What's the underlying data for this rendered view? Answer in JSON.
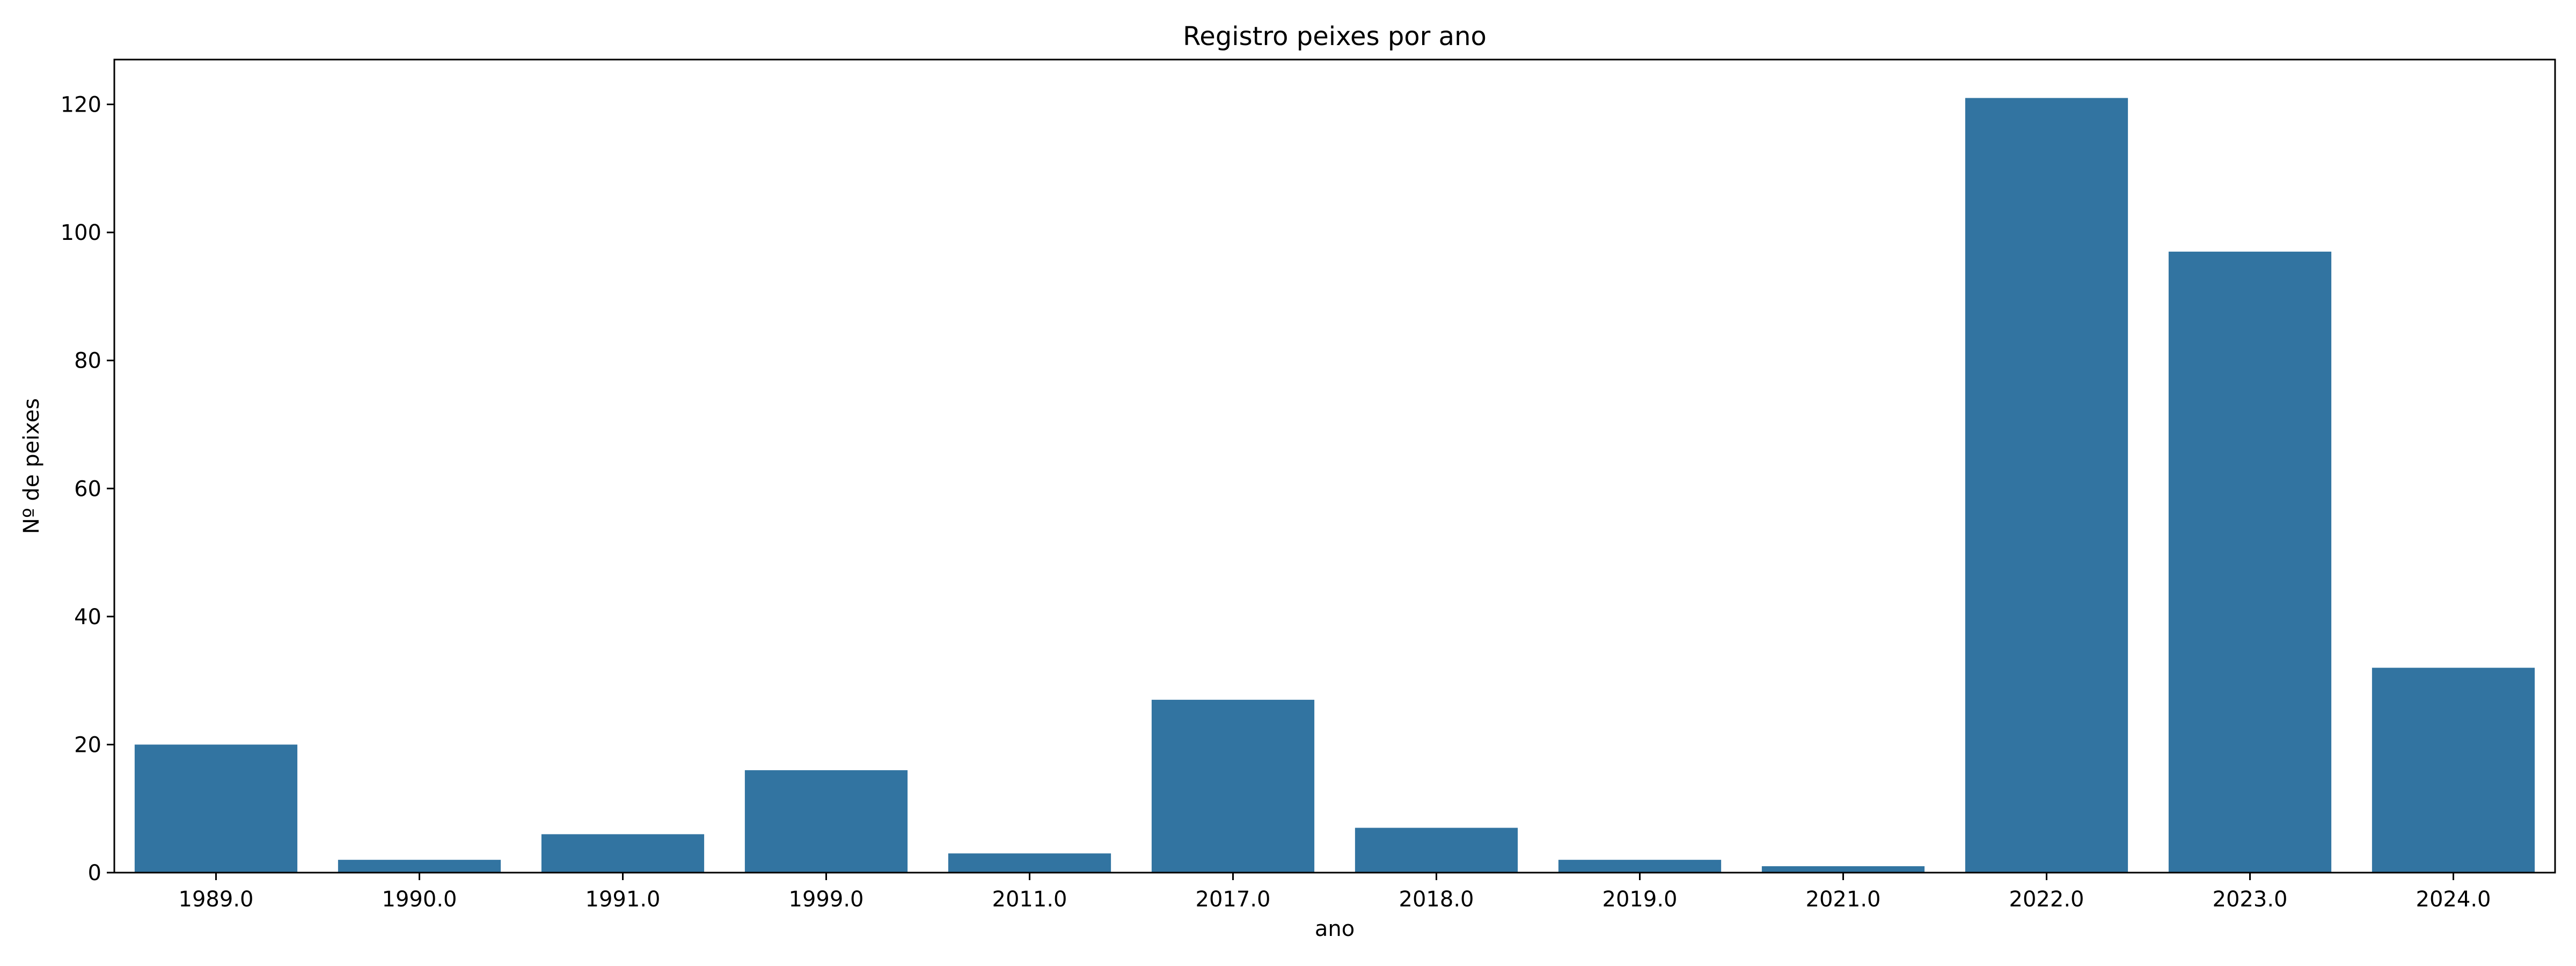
{
  "chart_data": {
    "type": "bar",
    "title": "Registro peixes por ano",
    "xlabel": "ano",
    "ylabel": "Nº de peixes",
    "categories": [
      "1989.0",
      "1990.0",
      "1991.0",
      "1999.0",
      "2011.0",
      "2017.0",
      "2018.0",
      "2019.0",
      "2021.0",
      "2022.0",
      "2023.0",
      "2024.0"
    ],
    "values": [
      20,
      2,
      6,
      16,
      3,
      27,
      7,
      2,
      1,
      121,
      97,
      32
    ],
    "ylim": [
      0,
      127
    ],
    "yticks": [
      0,
      20,
      40,
      60,
      80,
      100,
      120
    ],
    "grid": false,
    "bar_color": "#3274a1"
  }
}
